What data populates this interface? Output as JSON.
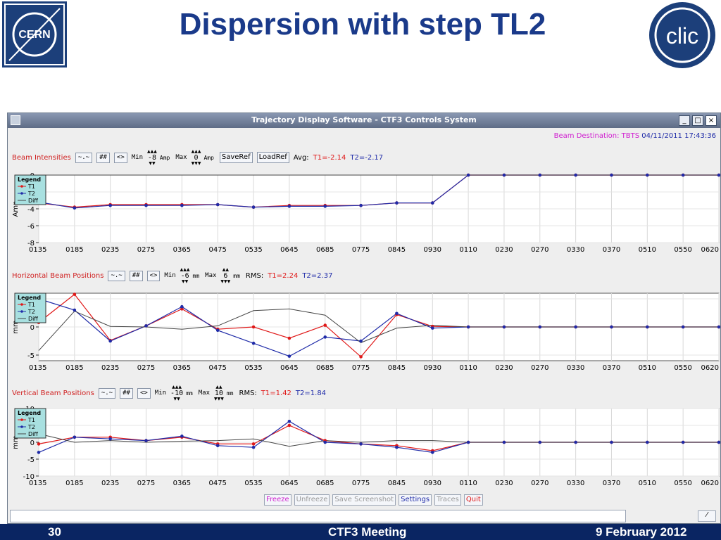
{
  "slide": {
    "title": "Dispersion with step TL2"
  },
  "logos": {
    "cern_text": "CERN",
    "clic_text": "clic"
  },
  "window": {
    "title": "Trajectory Display Software - CTF3 Controls System",
    "btn_minimize": "_",
    "btn_maximize": "□",
    "btn_close": "×"
  },
  "beam_destination": {
    "label": "Beam Destination: TBTS",
    "timestamp": "04/11/2011 17:43:36"
  },
  "panels": [
    {
      "title": "Beam Intensities",
      "btn1": "~.~",
      "btn2": "##",
      "btn3": "<>",
      "min_label": "Min",
      "min_value": "-8",
      "min_unit": "Amp",
      "max_label": "Max",
      "max_value": "0",
      "max_unit": "Amp",
      "saveref": "SaveRef",
      "loadref": "LoadRef",
      "stat_label": "Avg:",
      "t1_text": "T1=-2.14",
      "t2_text": "T2=-2.17"
    },
    {
      "title": "Horizontal Beam Positions",
      "btn1": "~.~",
      "btn2": "##",
      "btn3": "<>",
      "min_label": "Min",
      "min_value": "-6",
      "min_unit": "mm",
      "max_label": "Max",
      "max_value": "6",
      "max_unit": "mm",
      "stat_label": "RMS:",
      "t1_text": "T1=2.24",
      "t2_text": "T2=2.37"
    },
    {
      "title": "Vertical Beam Positions",
      "btn1": "~.~",
      "btn2": "##",
      "btn3": "<>",
      "min_label": "Min",
      "min_value": "-10",
      "min_unit": "mm",
      "max_label": "Max",
      "max_value": "10",
      "max_unit": "mm",
      "stat_label": "RMS:",
      "t1_text": "T1=1.42",
      "t2_text": "T2=1.84"
    }
  ],
  "legend": {
    "title": "Legend",
    "t1": "T1",
    "t2": "T2",
    "diff": "Diff"
  },
  "bottom_buttons": [
    "Freeze",
    "Unfreeze",
    "Save Screenshot",
    "Settings",
    "Traces",
    "Quit"
  ],
  "footer": {
    "page": "30",
    "meeting": "CTF3 Meeting",
    "date": "9 February 2012"
  },
  "colors": {
    "t1": "#e01818",
    "t2": "#1f2ba8",
    "diff": "#444444",
    "section_title": "#d02020",
    "slide_title": "#1a3a8a",
    "footer_bg": "#0a2562"
  },
  "chart_data": [
    {
      "type": "line",
      "ylabel": "Amp",
      "ylim": [
        -8,
        0
      ],
      "yticks": [
        0,
        -2,
        -4,
        -6,
        -8
      ],
      "categories": [
        "0135",
        "0185",
        "0235",
        "0275",
        "0365",
        "0475",
        "0535",
        "0645",
        "0685",
        "0775",
        "0845",
        "0930",
        "0110",
        "0230",
        "0270",
        "0330",
        "0370",
        "0510",
        "0550",
        "0620"
      ],
      "series": [
        {
          "name": "T1",
          "values": [
            -3.3,
            -3.8,
            -3.5,
            -3.5,
            -3.5,
            -3.5,
            -3.8,
            -3.6,
            -3.6,
            -3.6,
            -3.3,
            -3.3,
            0,
            0,
            0,
            0,
            0,
            0,
            0,
            0
          ]
        },
        {
          "name": "T2",
          "values": [
            -3.2,
            -3.9,
            -3.6,
            -3.6,
            -3.6,
            -3.5,
            -3.8,
            -3.7,
            -3.7,
            -3.6,
            -3.3,
            -3.3,
            0,
            0,
            0,
            0,
            0,
            0,
            0,
            0
          ]
        },
        {
          "name": "Diff",
          "values": [
            0.0,
            0.0,
            0.0,
            0.0,
            0.0,
            0.0,
            0.0,
            0.0,
            0.0,
            0.0,
            0.0,
            0.0,
            0.0,
            0.0,
            0.0,
            0.0,
            0.0,
            0.0,
            0.0,
            0.0
          ]
        }
      ],
      "grid": true,
      "legend": "top-left"
    },
    {
      "type": "line",
      "ylabel": "mm",
      "ylim": [
        -6,
        6
      ],
      "yticks": [
        5,
        0,
        -5
      ],
      "categories": [
        "0135",
        "0185",
        "0235",
        "0275",
        "0365",
        "0475",
        "0535",
        "0645",
        "0685",
        "0775",
        "0845",
        "0930",
        "0110",
        "0230",
        "0270",
        "0330",
        "0370",
        "0510",
        "0550",
        "0620"
      ],
      "series": [
        {
          "name": "T1",
          "values": [
            0.8,
            5.8,
            -2.4,
            0.2,
            3.2,
            -0.4,
            0.0,
            -2.0,
            0.3,
            -5.3,
            2.2,
            0.1,
            0,
            0,
            0,
            0,
            0,
            0,
            0,
            0
          ]
        },
        {
          "name": "T2",
          "values": [
            5.0,
            3.0,
            -2.5,
            0.2,
            3.6,
            -0.6,
            -2.9,
            -5.2,
            -1.8,
            -2.5,
            2.4,
            -0.2,
            0,
            0,
            0,
            0,
            0,
            0,
            0,
            0
          ]
        },
        {
          "name": "Diff",
          "values": [
            -4.2,
            2.8,
            0.1,
            0.0,
            -0.4,
            0.2,
            2.9,
            3.2,
            2.1,
            -2.8,
            -0.2,
            0.3,
            0,
            0,
            0,
            0,
            0,
            0,
            0,
            0
          ]
        }
      ],
      "grid": true,
      "legend": "top-left"
    },
    {
      "type": "line",
      "ylabel": "mm",
      "ylim": [
        -10,
        10
      ],
      "yticks": [
        10,
        5,
        0,
        -5,
        -10
      ],
      "categories": [
        "0135",
        "0185",
        "0235",
        "0275",
        "0365",
        "0475",
        "0535",
        "0645",
        "0685",
        "0775",
        "0845",
        "0930",
        "0110",
        "0230",
        "0270",
        "0330",
        "0370",
        "0510",
        "0550",
        "0620"
      ],
      "series": [
        {
          "name": "T1",
          "values": [
            -0.5,
            1.5,
            1.5,
            0.5,
            1.5,
            -0.5,
            -0.5,
            5.0,
            0.5,
            -0.5,
            -1.0,
            -2.5,
            0,
            0,
            0,
            0,
            0,
            0,
            0,
            0
          ]
        },
        {
          "name": "T2",
          "values": [
            -3.0,
            1.5,
            1.0,
            0.5,
            1.8,
            -1.0,
            -1.5,
            6.2,
            0.0,
            -0.5,
            -1.5,
            -3.0,
            0,
            0,
            0,
            0,
            0,
            0,
            0,
            0
          ]
        },
        {
          "name": "Diff",
          "values": [
            2.5,
            0.0,
            0.5,
            0.0,
            0.3,
            0.5,
            1.0,
            -1.2,
            0.5,
            0.0,
            0.5,
            0.5,
            0,
            0,
            0,
            0,
            0,
            0,
            0,
            0
          ]
        }
      ],
      "grid": true,
      "legend": "top-left"
    }
  ]
}
